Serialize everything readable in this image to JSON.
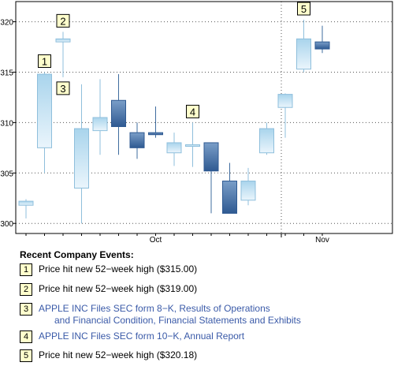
{
  "chart_data": {
    "type": "candlestick",
    "y_ticks": [
      300,
      305,
      310,
      315,
      320
    ],
    "ylim": [
      299,
      322
    ],
    "x_labels": [
      {
        "label": "Oct",
        "at_index": 7
      },
      {
        "label": "Nov",
        "at_index": 16
      }
    ],
    "grid": true,
    "up_color": "#a9d4ec",
    "down_color": "#3f6c9f",
    "candles": [
      {
        "open": 301.8,
        "high": 302.4,
        "low": 300.5,
        "close": 302.2,
        "dir": "up"
      },
      {
        "open": 307.5,
        "high": 315.0,
        "low": 305.0,
        "close": 314.8,
        "dir": "up"
      },
      {
        "open": 318.0,
        "high": 319.0,
        "low": 314.5,
        "close": 318.3,
        "dir": "up"
      },
      {
        "open": 303.5,
        "high": 313.8,
        "low": 300.0,
        "close": 309.4,
        "dir": "up"
      },
      {
        "open": 309.2,
        "high": 314.3,
        "low": 306.8,
        "close": 310.5,
        "dir": "up"
      },
      {
        "open": 312.2,
        "high": 314.8,
        "low": 306.8,
        "close": 309.6,
        "dir": "down"
      },
      {
        "open": 309.0,
        "high": 310.0,
        "low": 306.4,
        "close": 307.5,
        "dir": "down"
      },
      {
        "open": 309.0,
        "high": 311.6,
        "low": 308.5,
        "close": 308.8,
        "dir": "down"
      },
      {
        "open": 307.0,
        "high": 309.0,
        "low": 305.7,
        "close": 308.0,
        "dir": "up"
      },
      {
        "open": 307.8,
        "high": 310.0,
        "low": 305.6,
        "close": 307.8,
        "dir": "up"
      },
      {
        "open": 308.0,
        "high": 308.0,
        "low": 301.0,
        "close": 305.2,
        "dir": "down"
      },
      {
        "open": 304.2,
        "high": 306.0,
        "low": 301.0,
        "close": 301.0,
        "dir": "down"
      },
      {
        "open": 302.3,
        "high": 305.5,
        "low": 301.8,
        "close": 304.2,
        "dir": "up"
      },
      {
        "open": 307.0,
        "high": 310.0,
        "low": 306.8,
        "close": 309.4,
        "dir": "up"
      },
      {
        "open": 311.5,
        "high": 312.9,
        "low": 308.5,
        "close": 312.8,
        "dir": "up"
      },
      {
        "open": 315.3,
        "high": 320.2,
        "low": 315.0,
        "close": 318.3,
        "dir": "up"
      },
      {
        "open": 318.0,
        "high": 319.6,
        "low": 316.9,
        "close": 317.3,
        "dir": "down"
      }
    ],
    "markers": [
      {
        "label": "1",
        "index": 1,
        "pos": "above"
      },
      {
        "label": "2",
        "index": 2,
        "pos": "above"
      },
      {
        "label": "3",
        "index": 2,
        "pos": "below"
      },
      {
        "label": "4",
        "index": 9,
        "pos": "above"
      },
      {
        "label": "5",
        "index": 15,
        "pos": "above"
      }
    ]
  },
  "events": {
    "title": "Recent Company Events:",
    "items": [
      {
        "num": "1",
        "text": "Price hit new 52−week high ($315.00)",
        "link": false
      },
      {
        "num": "2",
        "text": "Price hit new 52−week high ($319.00)",
        "link": false
      },
      {
        "num": "3",
        "text": "APPLE INC Files SEC form 8−K, Results of Operations",
        "text2": "and Financial Condition, Financial Statements and Exhibits",
        "link": true
      },
      {
        "num": "4",
        "text": "APPLE INC Files SEC form 10−K, Annual Report",
        "link": true
      },
      {
        "num": "5",
        "text": "Price hit new 52−week high ($320.18)",
        "link": false
      }
    ]
  }
}
